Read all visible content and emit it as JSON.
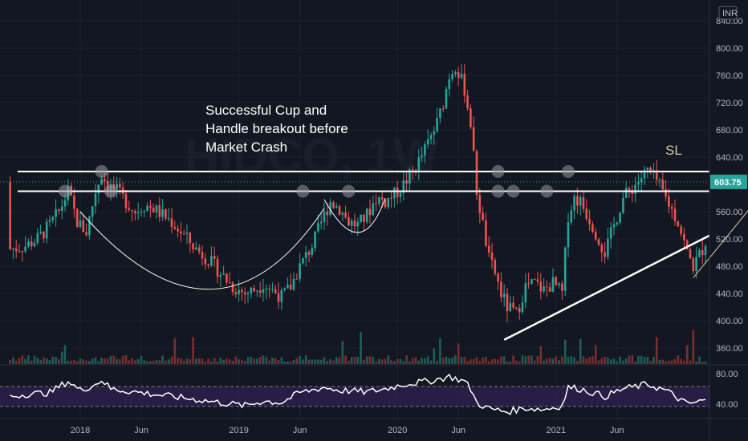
{
  "chart_data": {
    "type": "candlestick",
    "currency": "INR",
    "ylim": [
      340,
      845
    ],
    "price_ticks": [
      "840.00",
      "800.00",
      "760.00",
      "720.00",
      "680.00",
      "640.00",
      "560.00",
      "520.00",
      "480.00",
      "440.00",
      "400.00",
      "360.00"
    ],
    "price_tick_values": [
      840,
      800,
      760,
      720,
      680,
      640,
      560,
      520,
      480,
      440,
      400,
      360
    ],
    "x_ticks": [
      "2018",
      "Jun",
      "2019",
      "Jun",
      "2020",
      "Jun",
      "2021",
      "Jun"
    ],
    "x_tick_weeks": [
      0,
      20,
      52,
      72,
      104,
      124,
      156,
      176
    ],
    "last_price": "603.75",
    "last_price_value": 603.75,
    "rsi_ticks": [
      "80.00",
      "40.00"
    ],
    "rsi_tick_values": [
      80,
      40
    ],
    "rsi_band": [
      63,
      37
    ],
    "annotations": {
      "cup_handle": [
        "Successful Cup and",
        "Handle breakout before",
        "Market Crash"
      ],
      "sl": "SL"
    },
    "resistance_levels": [
      619,
      590
    ],
    "close_anchors": [
      [
        -23,
        505
      ],
      [
        -18,
        510
      ],
      [
        -14,
        520
      ],
      [
        -10,
        540
      ],
      [
        -7,
        560
      ],
      [
        -4,
        590
      ],
      [
        -1,
        545
      ],
      [
        2,
        530
      ],
      [
        5,
        590
      ],
      [
        7,
        615
      ],
      [
        9,
        600
      ],
      [
        12,
        590
      ],
      [
        15,
        575
      ],
      [
        18,
        560
      ],
      [
        21,
        570
      ],
      [
        24,
        565
      ],
      [
        27,
        555
      ],
      [
        30,
        545
      ],
      [
        34,
        525
      ],
      [
        38,
        505
      ],
      [
        42,
        490
      ],
      [
        46,
        470
      ],
      [
        50,
        450
      ],
      [
        54,
        440
      ],
      [
        57,
        445
      ],
      [
        60,
        455
      ],
      [
        63,
        445
      ],
      [
        66,
        435
      ],
      [
        69,
        450
      ],
      [
        72,
        480
      ],
      [
        76,
        510
      ],
      [
        80,
        555
      ],
      [
        82,
        575
      ],
      [
        85,
        565
      ],
      [
        88,
        545
      ],
      [
        91,
        540
      ],
      [
        94,
        555
      ],
      [
        97,
        580
      ],
      [
        100,
        575
      ],
      [
        103,
        585
      ],
      [
        106,
        600
      ],
      [
        110,
        625
      ],
      [
        114,
        660
      ],
      [
        117,
        690
      ],
      [
        119,
        720
      ],
      [
        121,
        760
      ],
      [
        123,
        775
      ],
      [
        126,
        740
      ],
      [
        128,
        690
      ],
      [
        130,
        590
      ],
      [
        132,
        540
      ],
      [
        134,
        490
      ],
      [
        136,
        470
      ],
      [
        138,
        440
      ],
      [
        140,
        420
      ],
      [
        143,
        410
      ],
      [
        146,
        450
      ],
      [
        149,
        455
      ],
      [
        152,
        445
      ],
      [
        155,
        455
      ],
      [
        158,
        440
      ],
      [
        160,
        555
      ],
      [
        162,
        580
      ],
      [
        164,
        575
      ],
      [
        168,
        540
      ],
      [
        172,
        500
      ],
      [
        175,
        540
      ],
      [
        178,
        580
      ],
      [
        182,
        600
      ],
      [
        186,
        620
      ],
      [
        189,
        605
      ],
      [
        192,
        580
      ],
      [
        196,
        545
      ],
      [
        199,
        500
      ],
      [
        201,
        480
      ],
      [
        204,
        505
      ],
      [
        207,
        540
      ],
      [
        210,
        575
      ],
      [
        213,
        590
      ],
      [
        215,
        604
      ]
    ],
    "rsi_anchors": [
      [
        -23,
        50
      ],
      [
        -18,
        53
      ],
      [
        -10,
        55
      ],
      [
        -4,
        70
      ],
      [
        0,
        58
      ],
      [
        5,
        66
      ],
      [
        7,
        72
      ],
      [
        10,
        60
      ],
      [
        20,
        55
      ],
      [
        30,
        50
      ],
      [
        40,
        45
      ],
      [
        50,
        40
      ],
      [
        54,
        38
      ],
      [
        60,
        44
      ],
      [
        66,
        42
      ],
      [
        72,
        55
      ],
      [
        80,
        62
      ],
      [
        85,
        58
      ],
      [
        94,
        56
      ],
      [
        100,
        60
      ],
      [
        106,
        66
      ],
      [
        114,
        70
      ],
      [
        121,
        76
      ],
      [
        126,
        70
      ],
      [
        128,
        60
      ],
      [
        130,
        42
      ],
      [
        134,
        34
      ],
      [
        140,
        30
      ],
      [
        146,
        35
      ],
      [
        152,
        33
      ],
      [
        158,
        38
      ],
      [
        160,
        62
      ],
      [
        164,
        60
      ],
      [
        172,
        50
      ],
      [
        178,
        60
      ],
      [
        186,
        66
      ],
      [
        192,
        58
      ],
      [
        199,
        40
      ],
      [
        204,
        44
      ],
      [
        210,
        55
      ],
      [
        215,
        62
      ]
    ]
  }
}
